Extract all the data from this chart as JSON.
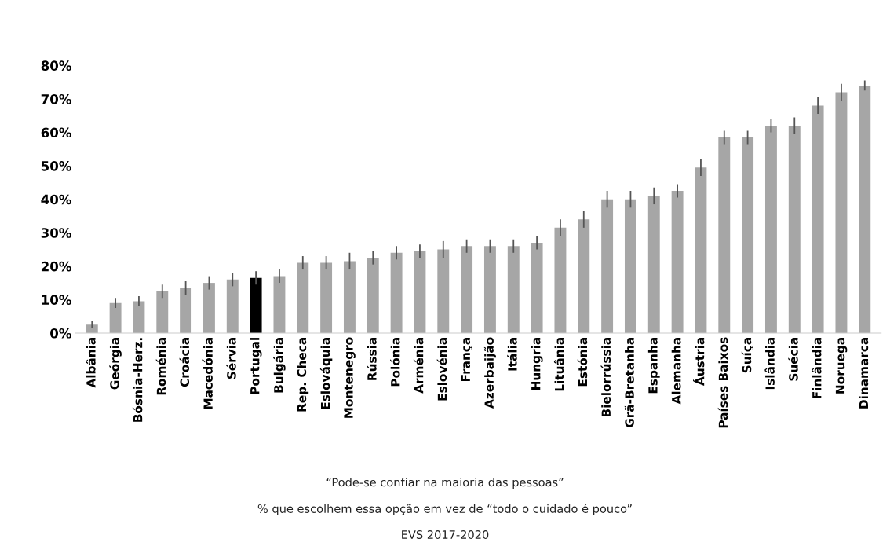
{
  "chart_data": {
    "type": "bar",
    "categories": [
      "Albânia",
      "Geórgia",
      "Bósnia-Herz.",
      "Roménia",
      "Croácia",
      "Macedónia",
      "Sérvia",
      "Portugal",
      "Bulgária",
      "Rep. Checa",
      "Eslováquia",
      "Montenegro",
      "Rússia",
      "Polónia",
      "Arménia",
      "Eslovénia",
      "França",
      "Azerbaijão",
      "Itália",
      "Hungria",
      "Lituânia",
      "Estónia",
      "Bielorrússia",
      "Grã-Bretanha",
      "Espanha",
      "Alemanha",
      "Áustria",
      "Países Baixos",
      "Suíça",
      "Islândia",
      "Suécia",
      "Finlândia",
      "Noruega",
      "Dinamarca"
    ],
    "values": [
      2.5,
      9,
      9.5,
      12.5,
      13.5,
      15,
      16,
      16.5,
      17,
      21,
      21,
      21.5,
      22.5,
      24,
      24.5,
      25,
      26,
      26,
      26,
      27,
      31.5,
      34,
      40,
      40,
      41,
      42.5,
      49.5,
      58.5,
      58.5,
      62,
      62,
      68,
      72,
      74
    ],
    "errors": [
      1,
      1.5,
      1.5,
      2,
      2,
      2,
      2,
      2,
      2,
      2,
      2,
      2.5,
      2,
      2,
      2,
      2.5,
      2,
      2,
      2,
      2,
      2.5,
      2.5,
      2.5,
      2.5,
      2.5,
      2,
      2.5,
      2,
      2,
      2,
      2.5,
      2.5,
      2.5,
      1.5
    ],
    "colors": [
      "#a6a6a6",
      "#a6a6a6",
      "#a6a6a6",
      "#a6a6a6",
      "#a6a6a6",
      "#a6a6a6",
      "#a6a6a6",
      "#000000",
      "#a6a6a6",
      "#a6a6a6",
      "#a6a6a6",
      "#a6a6a6",
      "#a6a6a6",
      "#a6a6a6",
      "#a6a6a6",
      "#a6a6a6",
      "#a6a6a6",
      "#a6a6a6",
      "#a6a6a6",
      "#a6a6a6",
      "#a6a6a6",
      "#a6a6a6",
      "#a6a6a6",
      "#a6a6a6",
      "#a6a6a6",
      "#a6a6a6",
      "#a6a6a6",
      "#a6a6a6",
      "#a6a6a6",
      "#a6a6a6",
      "#a6a6a6",
      "#a6a6a6",
      "#a6a6a6",
      "#a6a6a6"
    ],
    "ylim": [
      0,
      80
    ],
    "yticks": [
      {
        "value": 0,
        "label": "0%"
      },
      {
        "value": 10,
        "label": "10%"
      },
      {
        "value": 20,
        "label": "20%"
      },
      {
        "value": 30,
        "label": "30%"
      },
      {
        "value": 40,
        "label": "40%"
      },
      {
        "value": 50,
        "label": "50%"
      },
      {
        "value": 60,
        "label": "60%"
      },
      {
        "value": 70,
        "label": "70%"
      },
      {
        "value": 80,
        "label": "80%"
      }
    ],
    "grid": false,
    "annotations": [
      "“Pode-se confiar na maioria das pessoas”",
      "% que escolhem essa opção em vez de “todo o cuidado é pouco”",
      "EVS 2017-2020"
    ]
  }
}
